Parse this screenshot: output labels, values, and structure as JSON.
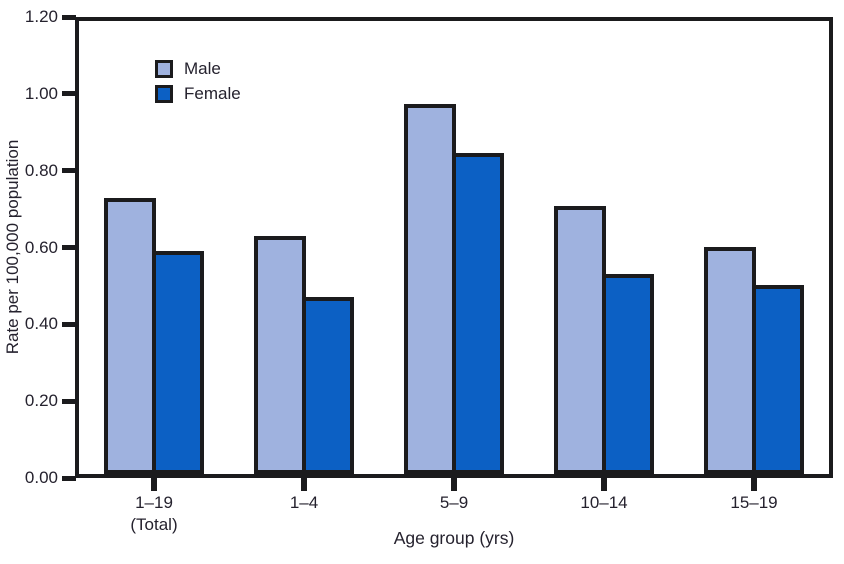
{
  "chart_data": {
    "type": "bar",
    "title": "",
    "xlabel": "Age group (yrs)",
    "ylabel": "Rate per 100,000 population",
    "ylim": [
      0,
      1.2
    ],
    "yticks": [
      "0.00",
      "0.20",
      "0.40",
      "0.60",
      "0.80",
      "1.00",
      "1.20"
    ],
    "grid": false,
    "legend_position": "upper-left-inside",
    "categories": [
      {
        "label": "1–19",
        "sublabel": "(Total)"
      },
      {
        "label": "1–4",
        "sublabel": ""
      },
      {
        "label": "5–9",
        "sublabel": ""
      },
      {
        "label": "10–14",
        "sublabel": ""
      },
      {
        "label": "15–19",
        "sublabel": ""
      }
    ],
    "series": [
      {
        "name": "Male",
        "color": "#9FB2DF",
        "values": [
          0.73,
          0.63,
          0.98,
          0.71,
          0.6
        ]
      },
      {
        "name": "Female",
        "color": "#0C60C4",
        "values": [
          0.59,
          0.47,
          0.85,
          0.53,
          0.5
        ]
      }
    ],
    "colors": {
      "axis": "#1B1B1D",
      "bar_outline": "#1B1B1D",
      "text": "#25222E"
    }
  }
}
